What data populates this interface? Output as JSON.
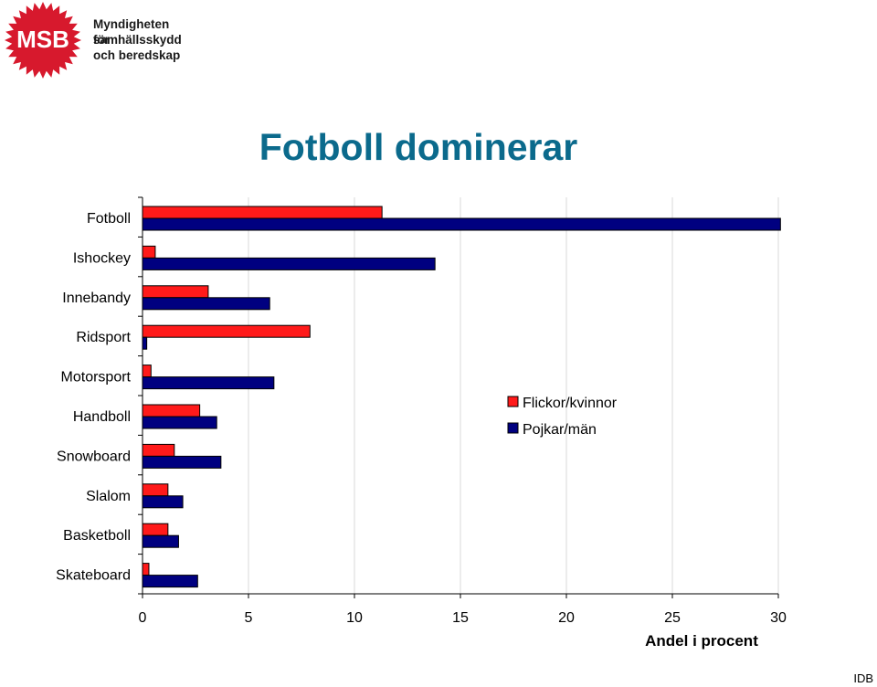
{
  "header": {
    "logo_mark": "MSB",
    "org_lines": [
      "Myndigheten för",
      "samhällsskydd",
      "och beredskap"
    ]
  },
  "colors": {
    "title": "#0b6a8c",
    "logo_red": "#d7192d",
    "series_girls": "#ff1a1a",
    "series_boys": "#000080"
  },
  "footer": {
    "code": "IDB"
  },
  "chart_data": {
    "type": "bar",
    "orientation": "horizontal",
    "title": "Fotboll dominerar",
    "xlabel": "Andel i procent",
    "ylabel": "",
    "xlim": [
      0,
      30
    ],
    "xticks": [
      0,
      5,
      10,
      15,
      20,
      25,
      30
    ],
    "grid": "vertical",
    "legend_position": "right",
    "categories": [
      "Fotboll",
      "Ishockey",
      "Innebandy",
      "Ridsport",
      "Motorsport",
      "Handboll",
      "Snowboard",
      "Slalom",
      "Basketboll",
      "Skateboard"
    ],
    "series": [
      {
        "name": "Flickor/kvinnor",
        "color": "#ff1a1a",
        "values": [
          11.3,
          0.6,
          3.1,
          7.9,
          0.4,
          2.7,
          1.5,
          1.2,
          1.2,
          0.3
        ]
      },
      {
        "name": "Pojkar/män",
        "color": "#000080",
        "values": [
          30.1,
          13.8,
          6.0,
          0.2,
          6.2,
          3.5,
          3.7,
          1.9,
          1.7,
          2.6
        ]
      }
    ]
  }
}
